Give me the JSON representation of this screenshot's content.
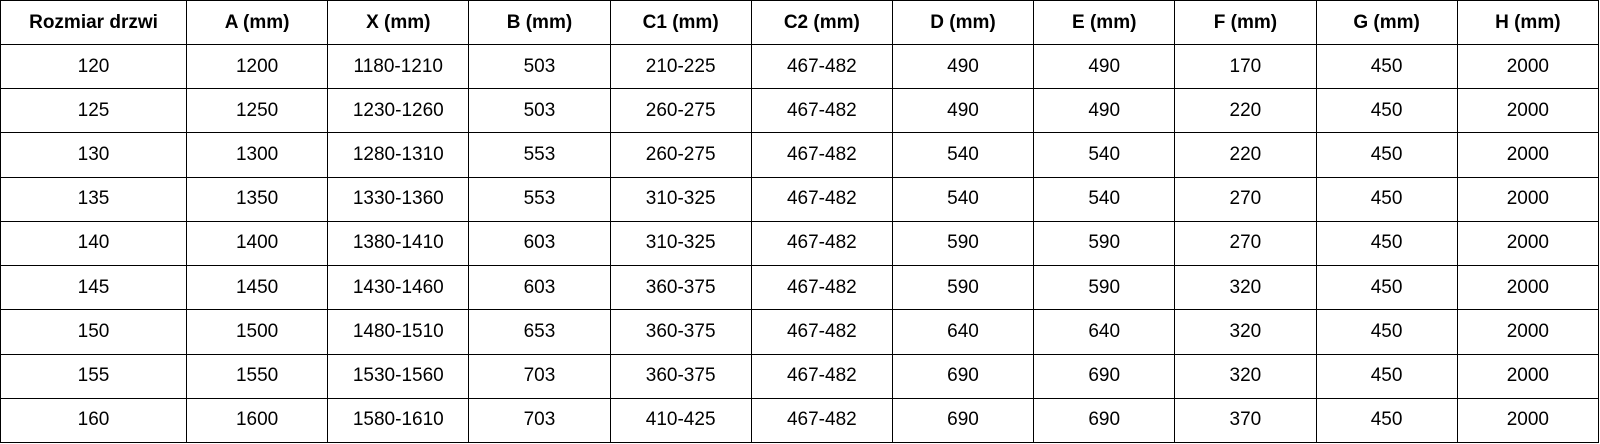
{
  "table": {
    "header": [
      "Rozmiar drzwi",
      "A (mm)",
      "X (mm)",
      "B (mm)",
      "C1 (mm)",
      "C2 (mm)",
      "D (mm)",
      "E (mm)",
      "F (mm)",
      "G (mm)",
      "H (mm)"
    ],
    "rows": [
      [
        120,
        1200,
        "1180-1210",
        503,
        "210-225",
        "467-482",
        490,
        490,
        170,
        450,
        2000
      ],
      [
        125,
        1250,
        "1230-1260",
        503,
        "260-275",
        "467-482",
        490,
        490,
        220,
        450,
        2000
      ],
      [
        130,
        1300,
        "1280-1310",
        553,
        "260-275",
        "467-482",
        540,
        540,
        220,
        450,
        2000
      ],
      [
        135,
        1350,
        "1330-1360",
        553,
        "310-325",
        "467-482",
        540,
        540,
        270,
        450,
        2000
      ],
      [
        140,
        1400,
        "1380-1410",
        603,
        "310-325",
        "467-482",
        590,
        590,
        270,
        450,
        2000
      ],
      [
        145,
        1450,
        "1430-1460",
        603,
        "360-375",
        "467-482",
        590,
        590,
        320,
        450,
        2000
      ],
      [
        150,
        1500,
        "1480-1510",
        653,
        "360-375",
        "467-482",
        640,
        640,
        320,
        450,
        2000
      ],
      [
        155,
        1550,
        "1530-1560",
        703,
        "360-375",
        "467-482",
        690,
        690,
        320,
        450,
        2000
      ],
      [
        160,
        1600,
        "1580-1610",
        703,
        "410-425",
        "467-482",
        690,
        690,
        370,
        450,
        2000
      ]
    ]
  }
}
